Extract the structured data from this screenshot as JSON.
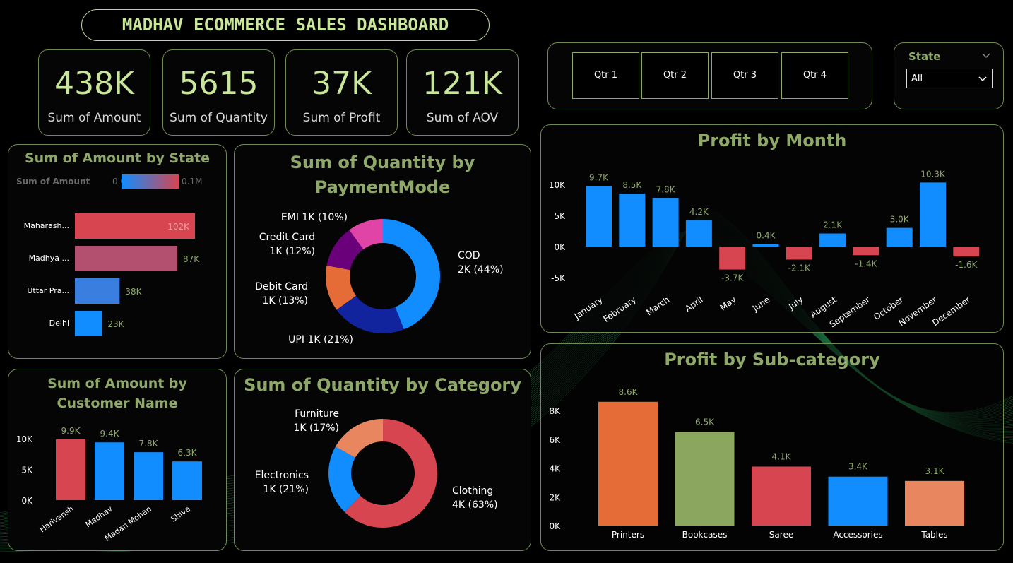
{
  "dashboard_title": "MADHAV ECOMMERCE SALES DASHBOARD",
  "kpis": [
    {
      "value": "438K",
      "label": "Sum of Amount"
    },
    {
      "value": "5615",
      "label": "Sum of Quantity"
    },
    {
      "value": "37K",
      "label": "Sum of Profit"
    },
    {
      "value": "121K",
      "label": "Sum of AOV"
    }
  ],
  "quarters": [
    "Qtr 1",
    "Qtr 2",
    "Qtr 3",
    "Qtr 4"
  ],
  "state_filter": {
    "label": "State",
    "selected": "All"
  },
  "colors": {
    "accent": "#8fa86a",
    "kpi": "#c9e69b",
    "blue": "#118dff",
    "red": "#d64550",
    "border": "#6f8a55"
  },
  "chart_data": [
    {
      "id": "amount_by_state",
      "type": "bar",
      "orientation": "horizontal",
      "title": "Sum of Amount by State",
      "legend": {
        "title": "Sum of Amount",
        "min_label": "0.02M",
        "max_label": "0.1M"
      },
      "categories": [
        "Maharash...",
        "Madhya ...",
        "Uttar Pra...",
        "Delhi"
      ],
      "values": [
        102000,
        87000,
        38000,
        23000
      ],
      "data_labels": [
        "102K",
        "87K",
        "38K",
        "23K"
      ],
      "colors": [
        "#d64550",
        "#b35070",
        "#3a7ee0",
        "#118dff"
      ]
    },
    {
      "id": "quantity_by_paymentmode",
      "type": "pie",
      "donut": true,
      "title": "Sum of Quantity by PaymentMode",
      "categories": [
        "COD",
        "UPI",
        "Debit Card",
        "Credit Card",
        "EMI"
      ],
      "values": [
        44,
        21,
        13,
        12,
        10
      ],
      "labels": [
        "COD\n2K (44%)",
        "UPI 1K (21%)",
        "Debit Card\n1K (13%)",
        "Credit Card\n1K (12%)",
        "EMI 1K (10%)"
      ],
      "colors": [
        "#118dff",
        "#12239e",
        "#e66c37",
        "#6b007b",
        "#e044a7"
      ]
    },
    {
      "id": "amount_by_customer",
      "type": "bar",
      "title": "Sum of Amount by Customer Name",
      "categories": [
        "Harivansh",
        "Madhav",
        "Madan Mohan",
        "Shiva"
      ],
      "values": [
        9900,
        9400,
        7800,
        6300
      ],
      "data_labels": [
        "9.9K",
        "9.4K",
        "7.8K",
        "6.3K"
      ],
      "y_ticks": [
        "10K",
        "5K",
        "0K"
      ],
      "ylim": [
        0,
        10000
      ],
      "colors": [
        "#d64550",
        "#118dff",
        "#118dff",
        "#118dff"
      ]
    },
    {
      "id": "quantity_by_category",
      "type": "pie",
      "donut": true,
      "title": "Sum of Quantity by Category",
      "categories": [
        "Clothing",
        "Electronics",
        "Furniture"
      ],
      "values": [
        63,
        21,
        17
      ],
      "labels": [
        "Clothing\n4K (63%)",
        "Electronics\n1K (21%)",
        "Furniture\n1K (17%)"
      ],
      "colors": [
        "#d64550",
        "#118dff",
        "#e8875f"
      ]
    },
    {
      "id": "profit_by_month",
      "type": "bar",
      "title": "Profit by Month",
      "categories": [
        "January",
        "February",
        "March",
        "April",
        "May",
        "June",
        "July",
        "August",
        "September",
        "October",
        "November",
        "December"
      ],
      "values": [
        9700,
        8500,
        7800,
        4200,
        -3700,
        400,
        -2100,
        2100,
        -1400,
        3000,
        10300,
        -1600
      ],
      "data_labels": [
        "9.7K",
        "8.5K",
        "7.8K",
        "4.2K",
        "-3.7K",
        "0.4K",
        "-2.1K",
        "2.1K",
        "-1.4K",
        "3.0K",
        "10.3K",
        "-1.6K"
      ],
      "y_ticks": [
        "10K",
        "5K",
        "0K",
        "-5K"
      ],
      "ylim": [
        -5000,
        10000
      ],
      "positive_color": "#118dff",
      "negative_color": "#d64550"
    },
    {
      "id": "profit_by_subcategory",
      "type": "bar",
      "title": "Profit by Sub-category",
      "categories": [
        "Printers",
        "Bookcases",
        "Saree",
        "Accessories",
        "Tables"
      ],
      "values": [
        8600,
        6500,
        4100,
        3400,
        3100
      ],
      "data_labels": [
        "8.6K",
        "6.5K",
        "4.1K",
        "3.4K",
        "3.1K"
      ],
      "y_ticks": [
        "8K",
        "6K",
        "4K",
        "2K",
        "0K"
      ],
      "ylim": [
        0,
        8000
      ],
      "colors": [
        "#e66c37",
        "#8aa65f",
        "#d64550",
        "#118dff",
        "#e8875f"
      ]
    }
  ]
}
